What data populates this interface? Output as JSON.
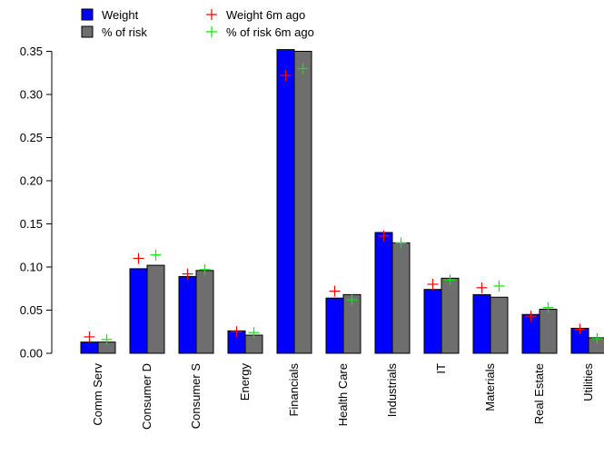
{
  "chart_data": {
    "type": "bar",
    "categories": [
      "Comm Serv",
      "Consumer D",
      "Consumer S",
      "Energy",
      "Financials",
      "Health Care",
      "Industrials",
      "IT",
      "Materials",
      "Real Estate",
      "Utilities"
    ],
    "series": [
      {
        "name": "Weight",
        "kind": "bar",
        "color": "#0000ff",
        "values": [
          0.013,
          0.098,
          0.089,
          0.026,
          0.352,
          0.064,
          0.14,
          0.074,
          0.068,
          0.045,
          0.029
        ]
      },
      {
        "name": "% of risk",
        "kind": "bar",
        "color": "#6e6e6e",
        "values": [
          0.013,
          0.102,
          0.096,
          0.021,
          0.35,
          0.068,
          0.128,
          0.087,
          0.065,
          0.051,
          0.018
        ]
      },
      {
        "name": "Weight 6m ago",
        "kind": "marker",
        "color": "#ff0000",
        "values": [
          0.019,
          0.11,
          0.092,
          0.025,
          0.322,
          0.072,
          0.136,
          0.08,
          0.076,
          0.043,
          0.028
        ]
      },
      {
        "name": "% of risk 6m ago",
        "kind": "marker",
        "color": "#00ee00",
        "values": [
          0.016,
          0.114,
          0.097,
          0.024,
          0.33,
          0.062,
          0.128,
          0.085,
          0.078,
          0.053,
          0.017
        ]
      }
    ],
    "yticks": [
      "0.00",
      "0.05",
      "0.10",
      "0.15",
      "0.20",
      "0.25",
      "0.30",
      "0.35"
    ],
    "ylim": [
      0,
      0.35
    ],
    "title": "",
    "xlabel": "",
    "ylabel": "",
    "grid": false,
    "legend_position": "top-left"
  }
}
